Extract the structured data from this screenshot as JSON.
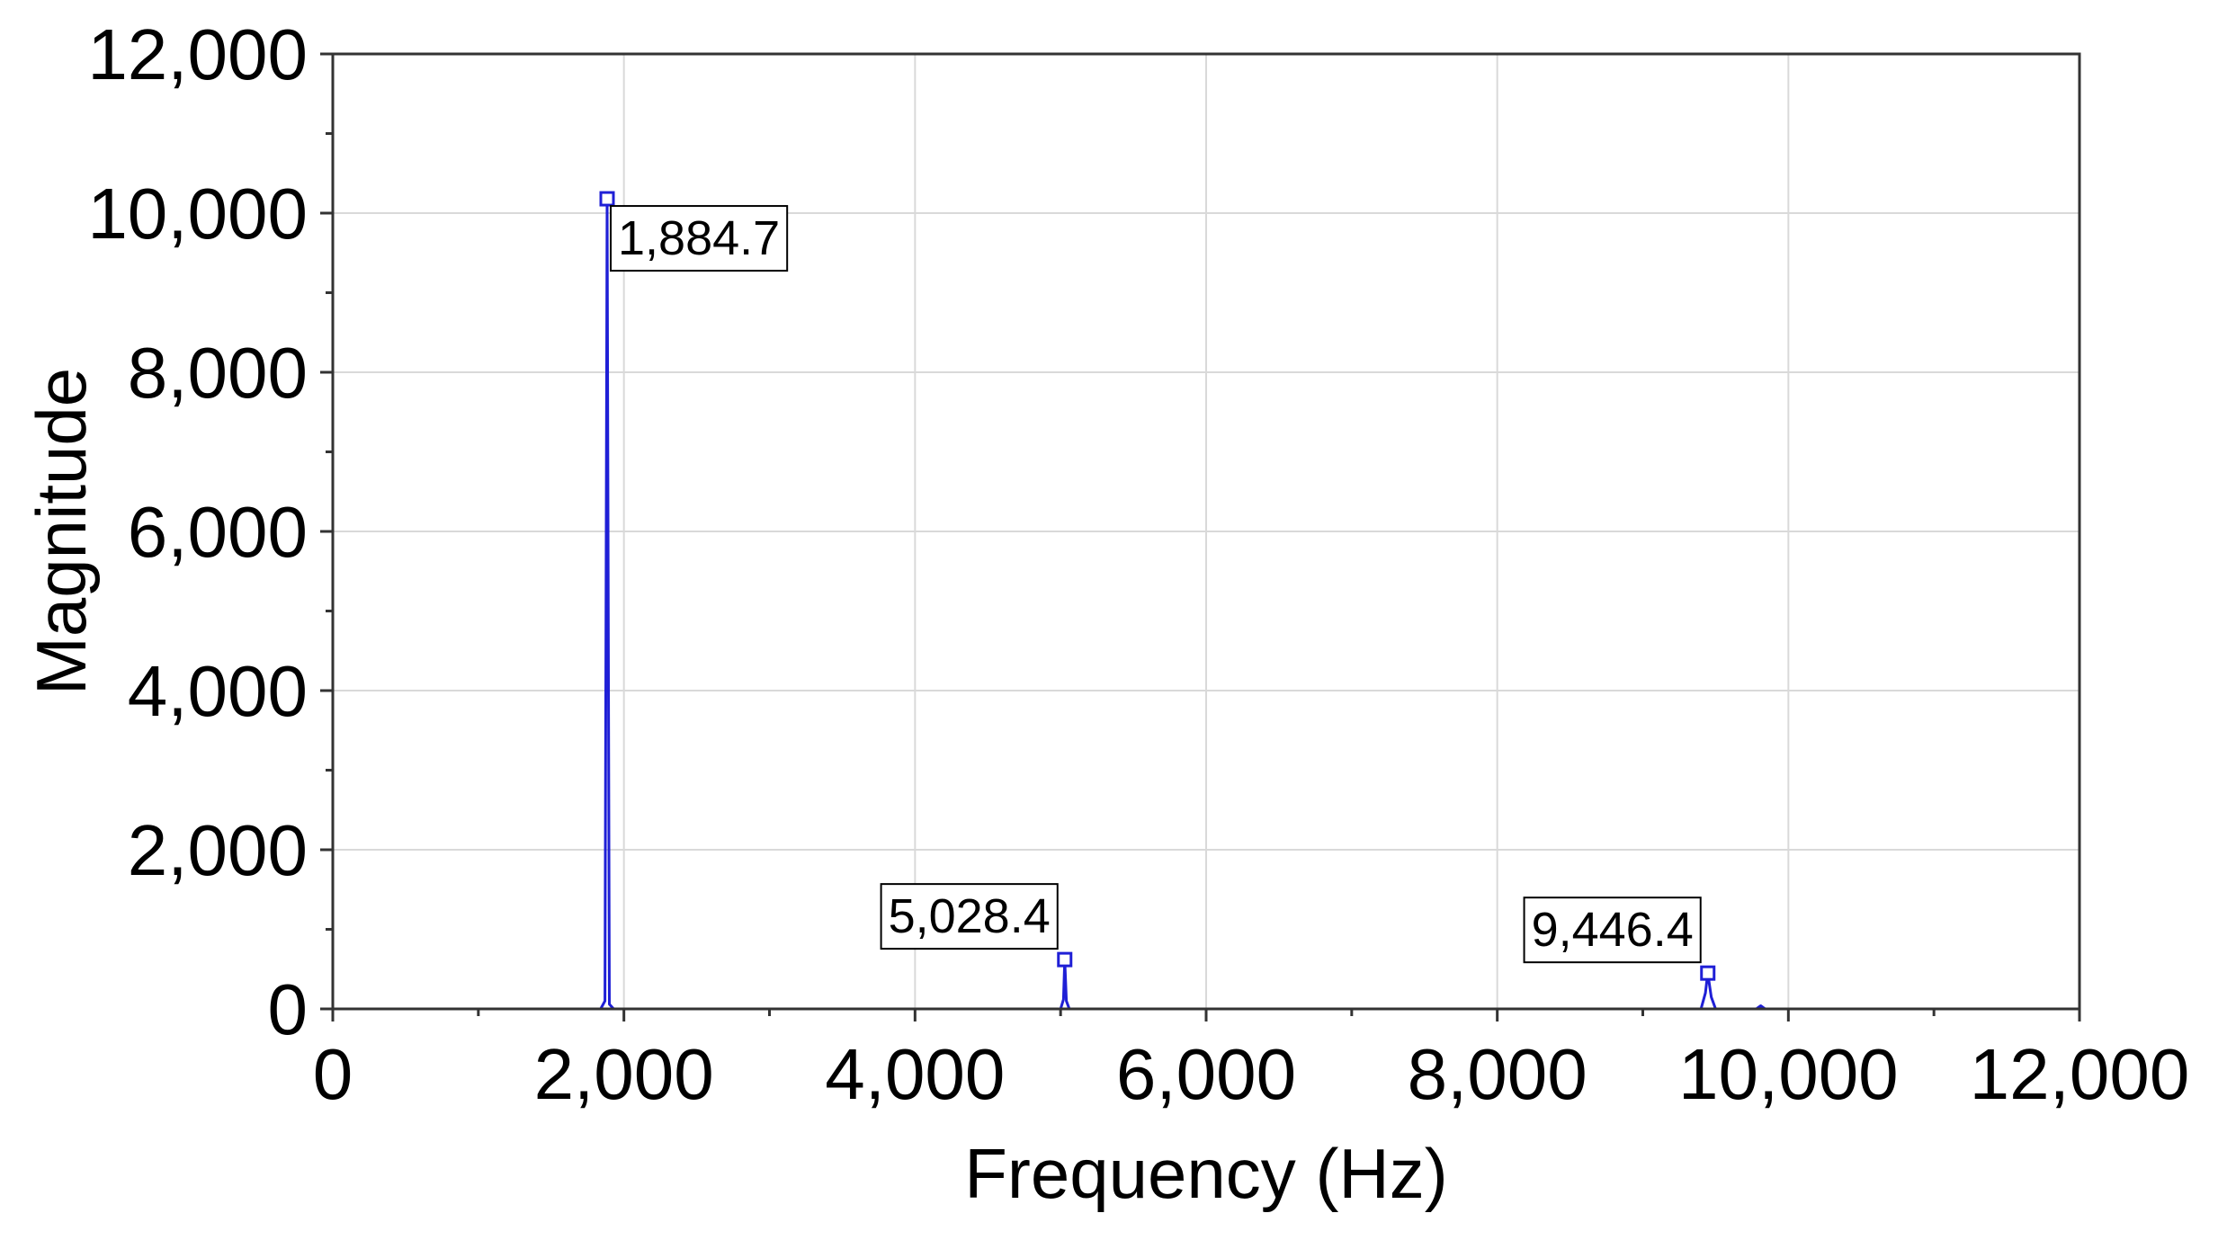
{
  "chart_data": {
    "type": "line",
    "title": "",
    "xlabel": "Frequency (Hz)",
    "ylabel": "Magnitude",
    "xlim": [
      0,
      12000
    ],
    "ylim": [
      0,
      12000
    ],
    "xticks": [
      0,
      2000,
      4000,
      6000,
      8000,
      10000,
      12000
    ],
    "xtick_labels": [
      "0",
      "2,000",
      "4,000",
      "6,000",
      "8,000",
      "10,000",
      "12,000"
    ],
    "yticks": [
      0,
      2000,
      4000,
      6000,
      8000,
      10000,
      12000
    ],
    "ytick_labels": [
      "0",
      "2,000",
      "4,000",
      "6,000",
      "8,000",
      "10,000",
      "12,000"
    ],
    "grid": true,
    "series": [
      {
        "color": "#1f1fd6",
        "x": [
          0,
          1840,
          1870,
          1884.7,
          1900,
          1930,
          5000,
          5020,
          5028.4,
          5040,
          5060,
          9400,
          9430,
          9446.4,
          9470,
          9500,
          9780,
          9810,
          9840,
          12000
        ],
        "values": [
          0,
          0,
          100,
          10180,
          60,
          0,
          0,
          120,
          620,
          100,
          0,
          0,
          200,
          450,
          150,
          0,
          0,
          40,
          0,
          0
        ]
      }
    ],
    "annotations": [
      {
        "x": 1884.7,
        "y": 10180,
        "text": "1,884.7",
        "placement": "below-right"
      },
      {
        "x": 5028.4,
        "y": 620,
        "text": "5,028.4",
        "placement": "above-left"
      },
      {
        "x": 9446.4,
        "y": 450,
        "text": "9,446.4",
        "placement": "above-left"
      }
    ]
  }
}
